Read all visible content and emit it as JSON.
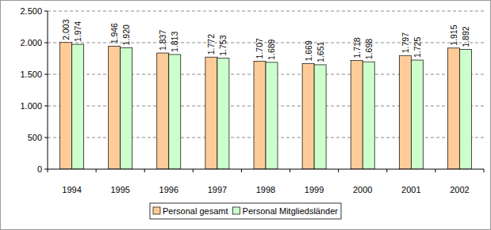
{
  "chart_data": {
    "type": "bar",
    "categories": [
      "1994",
      "1995",
      "1996",
      "1997",
      "1998",
      "1999",
      "2000",
      "2001",
      "2002"
    ],
    "series": [
      {
        "name": "Personal gesamt",
        "color": "#ffcc99",
        "values": [
          2003,
          1946,
          1837,
          1772,
          1707,
          1669,
          1718,
          1797,
          1915
        ],
        "value_labels": [
          "2.003",
          "1.946",
          "1.837",
          "1.772",
          "1.707",
          "1.669",
          "1.718",
          "1.797",
          "1.915"
        ]
      },
      {
        "name": "Personal Mitgliedsländer",
        "color": "#ccffcc",
        "values": [
          1974,
          1920,
          1813,
          1753,
          1689,
          1651,
          1698,
          1725,
          1892
        ],
        "value_labels": [
          "1.974",
          "1.920",
          "1.813",
          "1.753",
          "1.689",
          "1.651",
          "1.698",
          "1.725",
          "1.892"
        ]
      }
    ],
    "ylim": [
      0,
      2500
    ],
    "yticks": [
      0,
      500,
      {
        "value": 1000,
        "label": "1.000"
      },
      {
        "value": 1500,
        "label": "1.500"
      },
      {
        "value": 2000,
        "label": "2.000"
      },
      {
        "value": 2500,
        "label": "2.500"
      }
    ],
    "grid": true,
    "legend": "bottom",
    "data_labels": true
  }
}
